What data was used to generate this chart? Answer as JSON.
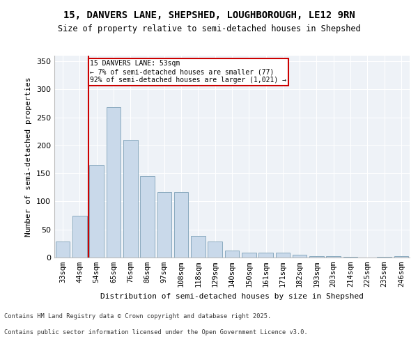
{
  "title_line1": "15, DANVERS LANE, SHEPSHED, LOUGHBOROUGH, LE12 9RN",
  "title_line2": "Size of property relative to semi-detached houses in Shepshed",
  "xlabel": "Distribution of semi-detached houses by size in Shepshed",
  "ylabel": "Number of semi-detached properties",
  "categories": [
    "33sqm",
    "44sqm",
    "54sqm",
    "65sqm",
    "76sqm",
    "86sqm",
    "97sqm",
    "108sqm",
    "118sqm",
    "129sqm",
    "140sqm",
    "150sqm",
    "161sqm",
    "171sqm",
    "182sqm",
    "193sqm",
    "203sqm",
    "214sqm",
    "225sqm",
    "235sqm",
    "246sqm"
  ],
  "values": [
    28,
    75,
    165,
    268,
    210,
    145,
    117,
    117,
    38,
    29,
    13,
    9,
    9,
    9,
    5,
    3,
    2,
    1,
    0,
    1,
    2
  ],
  "bar_color": "#c9d9ea",
  "bar_edge_color": "#8aaabf",
  "marker_line_color": "#cc0000",
  "annotation_box_color": "#ffffff",
  "annotation_box_edge": "#cc0000",
  "ylim": [
    0,
    360
  ],
  "yticks": [
    0,
    50,
    100,
    150,
    200,
    250,
    300,
    350
  ],
  "background_color": "#eef2f7",
  "fig_background": "#ffffff",
  "footer_line1": "Contains HM Land Registry data © Crown copyright and database right 2025.",
  "footer_line2": "Contains public sector information licensed under the Open Government Licence v3.0."
}
